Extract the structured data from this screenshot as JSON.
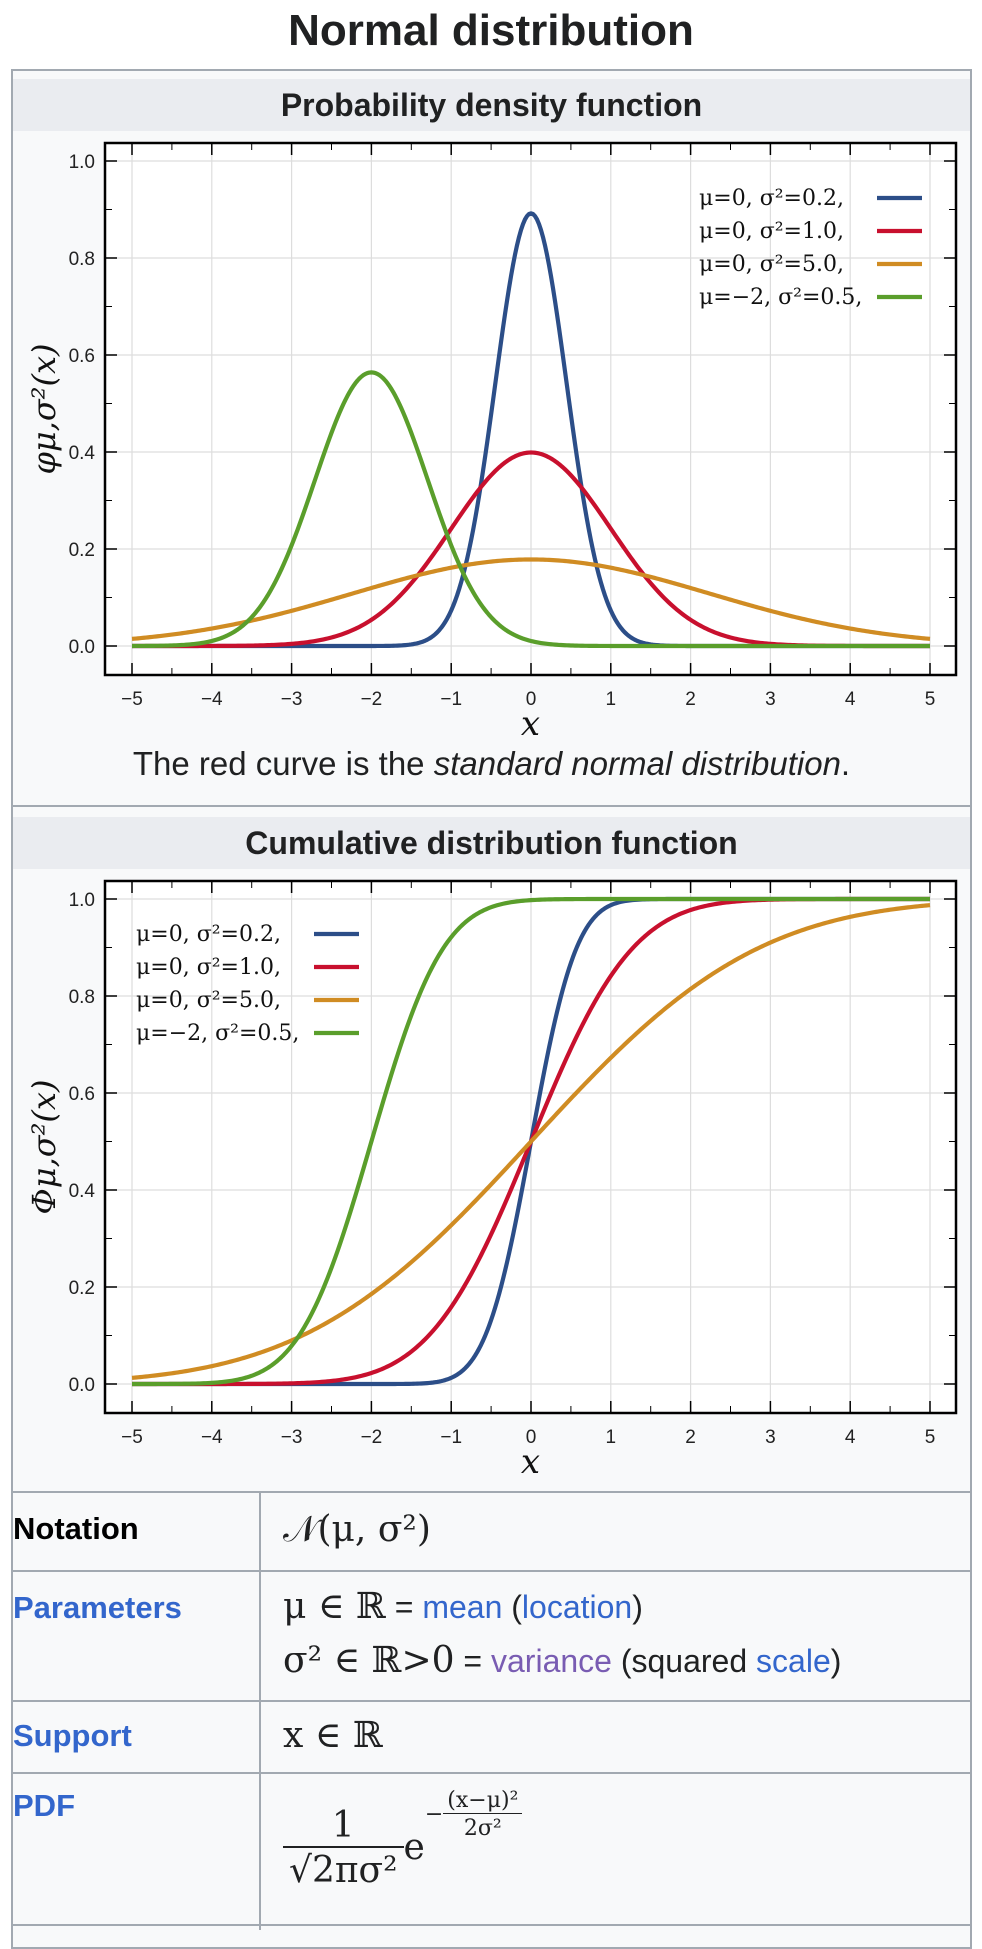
{
  "page_title": "Normal distribution",
  "pdf_section": {
    "header": "Probability density function",
    "caption_before": "The red curve is the ",
    "caption_italic": "standard normal distribution",
    "caption_after": "."
  },
  "cdf_section": {
    "header": "Cumulative distribution function"
  },
  "chart_data": [
    {
      "type": "line",
      "title": "Probability density function",
      "xlabel": "x",
      "ylabel": "φμ,σ²(x)",
      "xlim": [
        -5,
        5
      ],
      "ylim": [
        0,
        1.0
      ],
      "xticks": [
        "−5",
        "−4",
        "−3",
        "−2",
        "−1",
        "0",
        "1",
        "2",
        "3",
        "4",
        "5"
      ],
      "yticks": [
        "0.0",
        "0.2",
        "0.4",
        "0.6",
        "0.8",
        "1.0"
      ],
      "grid": true,
      "legend_position": "top-right",
      "function": "pdf",
      "series": [
        {
          "name": "μ=0,  σ²=0.2,",
          "mu": 0,
          "variance": 0.2,
          "color": "#2c4e88",
          "peak": 0.892
        },
        {
          "name": "μ=0,  σ²=1.0,",
          "mu": 0,
          "variance": 1.0,
          "color": "#c8102e",
          "peak": 0.399
        },
        {
          "name": "μ=0,  σ²=5.0,",
          "mu": 0,
          "variance": 5.0,
          "color": "#d08c23",
          "peak": 0.178
        },
        {
          "name": "μ=−2, σ²=0.5,",
          "mu": -2,
          "variance": 0.5,
          "color": "#5a9e2b",
          "peak": 0.564
        }
      ]
    },
    {
      "type": "line",
      "title": "Cumulative distribution function",
      "xlabel": "x",
      "ylabel": "Φμ,σ²(x)",
      "xlim": [
        -5,
        5
      ],
      "ylim": [
        0,
        1.0
      ],
      "xticks": [
        "−5",
        "−4",
        "−3",
        "−2",
        "−1",
        "0",
        "1",
        "2",
        "3",
        "4",
        "5"
      ],
      "yticks": [
        "0.0",
        "0.2",
        "0.4",
        "0.6",
        "0.8",
        "1.0"
      ],
      "grid": true,
      "legend_position": "top-left",
      "function": "cdf",
      "series": [
        {
          "name": "μ=0,  σ²=0.2,",
          "mu": 0,
          "variance": 0.2,
          "color": "#2c4e88"
        },
        {
          "name": "μ=0,  σ²=1.0,",
          "mu": 0,
          "variance": 1.0,
          "color": "#c8102e"
        },
        {
          "name": "μ=0,  σ²=5.0,",
          "mu": 0,
          "variance": 5.0,
          "color": "#d08c23"
        },
        {
          "name": "μ=−2, σ²=0.5,",
          "mu": -2,
          "variance": 0.5,
          "color": "#5a9e2b"
        }
      ]
    }
  ],
  "infobox": {
    "notation_label": "Notation",
    "notation_value": "𝒩(μ, σ²)",
    "parameters_label": "Parameters",
    "param1_math": "μ ∈ ℝ",
    "param1_eq": " = ",
    "param1_link1": "mean",
    "param1_open": " (",
    "param1_link2": "location",
    "param1_close": ")",
    "param2_math": "σ² ∈ ℝ>0",
    "param2_eq": " = ",
    "param2_link1": "variance",
    "param2_text": " (squared ",
    "param2_link2": "scale",
    "param2_close": ")",
    "support_label": "Support",
    "support_value": "x ∈ ℝ",
    "pdf_label": "PDF",
    "pdf_numerator": "1",
    "pdf_denominator": "√2πσ²",
    "pdf_base": "e",
    "pdf_exp_sign": "−",
    "pdf_exp_num": "(x−μ)²",
    "pdf_exp_den": "2σ²"
  }
}
